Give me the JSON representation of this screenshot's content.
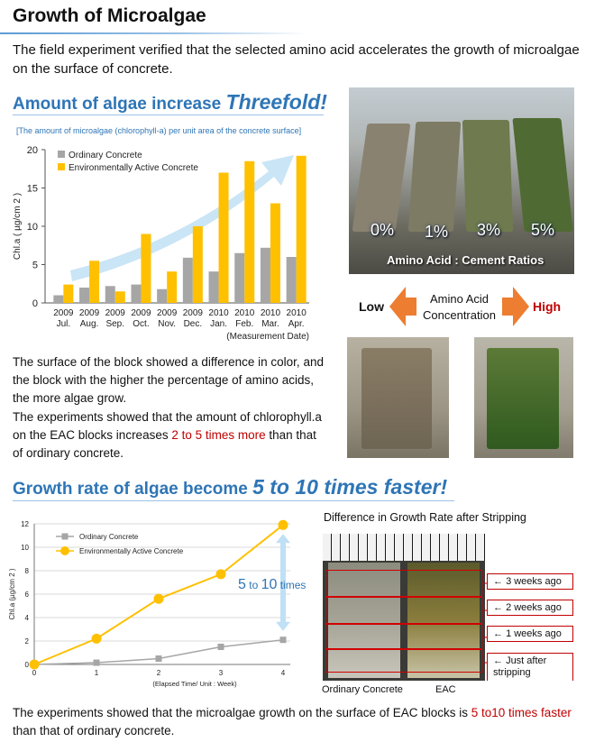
{
  "page": {
    "title": "Growth of Microalgae",
    "intro": "The field experiment verified that the selected amino acid accelerates the growth of microalgae on the surface of concrete."
  },
  "section1": {
    "heading": "Amount of algae increase ",
    "heading_emph": "Threefold!",
    "paragraph1": "The surface of the block showed a difference in color, and the block with the higher the percentage of amino acids, the more algae grow.",
    "paragraph2_pre": "The experiments showed that the amount of chlorophyll.a on the EAC blocks increases ",
    "paragraph2_red": "2 to 5 times more",
    "paragraph2_post": " than that of ordinary concrete."
  },
  "photo_blocks": {
    "ratios": [
      "0%",
      "1%",
      "3%",
      "5%"
    ],
    "caption": "Amino Acid : Cement Ratios",
    "colors": {
      "block0": "#8a8270",
      "block1": "#7d7b63",
      "block2": "#6f7a4e",
      "block3": "#4f6a33"
    }
  },
  "concentration": {
    "low": "Low",
    "label": "Amino Acid Concentration",
    "high": "High",
    "colors": {
      "arrow": "#ed7d31",
      "high": "#c00000"
    }
  },
  "section2": {
    "heading": "Growth rate of algae become ",
    "heading_emph": "5 to 10 times faster!",
    "photo_title": "Difference in Growth Rate after Stripping",
    "weeks": [
      "3 weeks ago",
      "2 weeks ago",
      "1 weeks ago",
      "Just after stripping"
    ],
    "photo_labels": [
      "Ordinary Concrete",
      "EAC"
    ],
    "conclusion_pre": "The experiments showed that the microalgae growth on the surface of EAC blocks is ",
    "conclusion_red": "5 to10 times faster",
    "conclusion_post": " than that of ordinary concrete."
  },
  "chart_data": [
    {
      "type": "bar",
      "title": "[The amount of microalgae (chlorophyll-a) per unit area of the concrete surface]",
      "ylabel": "Chl.a ( µg/cm 2 )",
      "xlabel": "(Measurement Date)",
      "ylim": [
        0,
        20
      ],
      "yticks": [
        0,
        5,
        10,
        15,
        20
      ],
      "categories": [
        [
          "2009",
          "Jul."
        ],
        [
          "2009",
          "Aug."
        ],
        [
          "2009",
          "Sep."
        ],
        [
          "2009",
          "Oct."
        ],
        [
          "2009",
          "Nov."
        ],
        [
          "2009",
          "Dec."
        ],
        [
          "2010",
          "Jan."
        ],
        [
          "2010",
          "Feb."
        ],
        [
          "2010",
          "Mar."
        ],
        [
          "2010",
          "Apr."
        ]
      ],
      "series": [
        {
          "name": "Ordinary Concrete",
          "color": "#a6a6a6",
          "values": [
            1.0,
            2.0,
            2.2,
            2.4,
            1.8,
            5.9,
            4.1,
            6.5,
            7.2,
            6.0
          ]
        },
        {
          "name": "Environmentally Active Concrete",
          "color": "#ffc000",
          "values": [
            2.4,
            5.5,
            1.5,
            9.0,
            4.1,
            10.0,
            17.0,
            18.5,
            13.0,
            19.2
          ]
        }
      ],
      "legend": "top-left",
      "grid": false
    },
    {
      "type": "line",
      "ylabel": "Chl.a (µg/cm 2 )",
      "xlabel": "(Elapsed Time/ Unit : Week)",
      "ylim": [
        0,
        12
      ],
      "yticks": [
        0,
        2,
        4,
        6,
        8,
        10,
        12
      ],
      "x": [
        0,
        1,
        2,
        3,
        4
      ],
      "series": [
        {
          "name": "Ordinary Concrete",
          "color": "#a6a6a6",
          "values": [
            0.0,
            0.15,
            0.5,
            1.5,
            2.1
          ]
        },
        {
          "name": "Environmentally Active Concrete",
          "color": "#ffc000",
          "values": [
            0.0,
            2.2,
            5.6,
            7.7,
            11.9
          ]
        }
      ],
      "annotation_num1": "5",
      "annotation_mid": " to ",
      "annotation_num2": "10",
      "annotation_tail": " times",
      "legend": "top-left",
      "grid": true
    }
  ]
}
